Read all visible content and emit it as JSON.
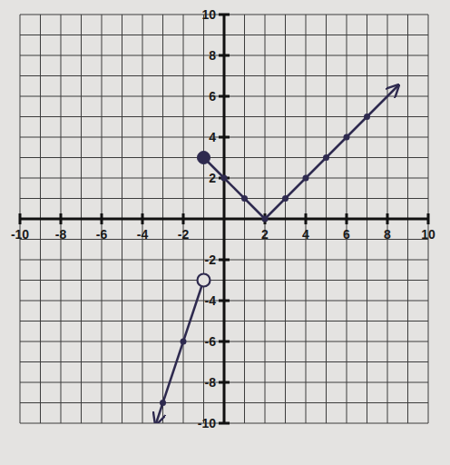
{
  "chart_data": {
    "type": "line",
    "xlim": [
      -10,
      10
    ],
    "ylim": [
      -10,
      10
    ],
    "xticks": [
      -10,
      -8,
      -6,
      -4,
      -2,
      2,
      4,
      6,
      8,
      10
    ],
    "yticks": [
      -10,
      -8,
      -6,
      -4,
      -2,
      2,
      4,
      6,
      8,
      10
    ],
    "grid": true,
    "color": "#2e2a4f",
    "series": [
      {
        "type": "line",
        "line_style": "arrow",
        "x": [
          -1,
          -2,
          -3,
          -3.33
        ],
        "values": [
          -3,
          -6,
          -9,
          -10
        ]
      },
      {
        "type": "line",
        "line_style": "solid",
        "x": [
          -1,
          0,
          1,
          2
        ],
        "values": [
          3,
          2,
          1,
          0
        ]
      },
      {
        "type": "line",
        "line_style": "arrow",
        "x": [
          2,
          3,
          4,
          5,
          6,
          7,
          8,
          8.5
        ],
        "values": [
          0,
          1,
          2,
          3,
          4,
          5,
          6,
          6.5
        ]
      },
      {
        "type": "scatter",
        "marker": "dot",
        "x": [
          -2,
          -3,
          0,
          1,
          2,
          3,
          4,
          5,
          6,
          7
        ],
        "values": [
          -6,
          -9,
          2,
          1,
          0,
          1,
          2,
          3,
          4,
          5
        ]
      },
      {
        "type": "scatter",
        "marker": "filled_circle",
        "x": [
          -1
        ],
        "values": [
          3
        ]
      },
      {
        "type": "scatter",
        "marker": "open_circle",
        "x": [
          -1
        ],
        "values": [
          -3
        ]
      }
    ]
  }
}
